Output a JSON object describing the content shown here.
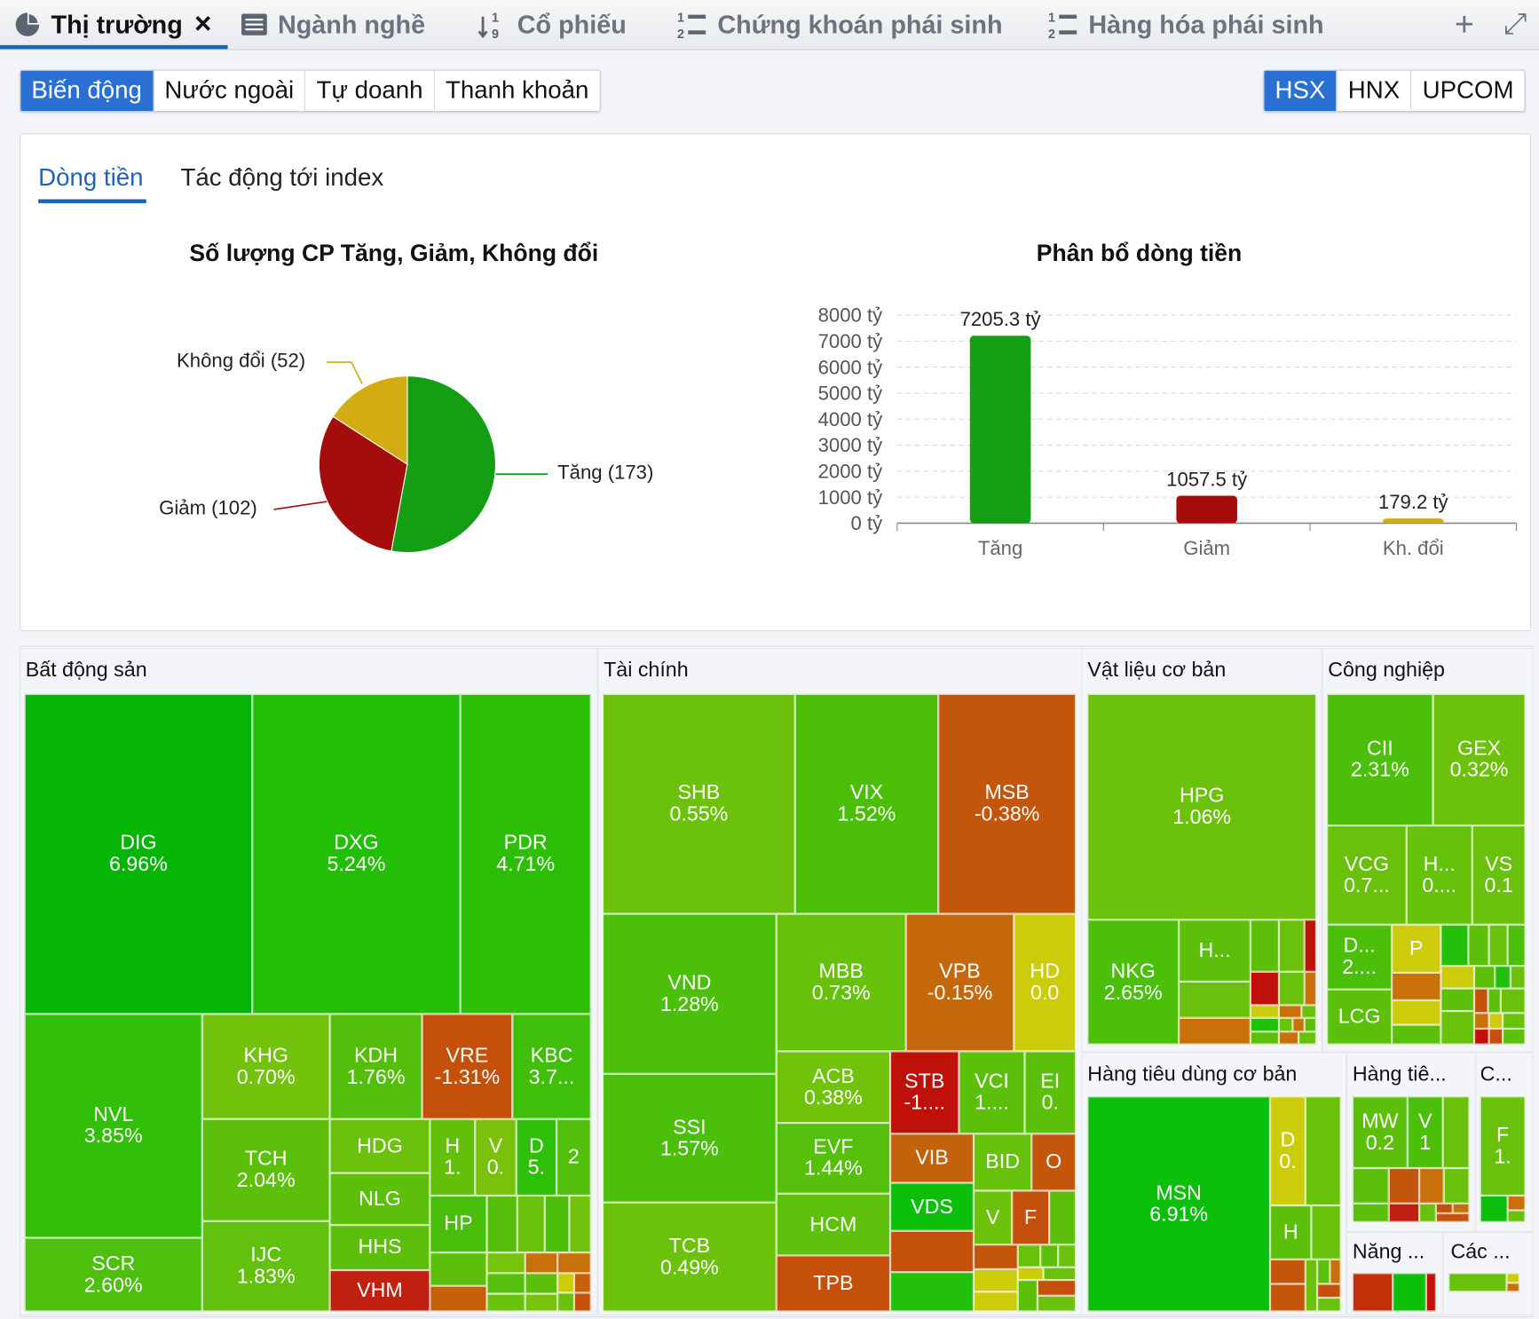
{
  "tabs": [
    {
      "label": "Thị trường",
      "icon": "pie-chart-icon",
      "active": true
    },
    {
      "label": "Ngành nghề",
      "icon": "list-icon"
    },
    {
      "label": "Cổ phiếu",
      "icon": "sort-numeric-icon"
    },
    {
      "label": "Chứng khoán phái sinh",
      "icon": "numbered-list-icon"
    },
    {
      "label": "Hàng hóa phái sinh",
      "icon": "numbered-list-icon"
    }
  ],
  "tab_close": "×",
  "toolbar": {
    "add": "+",
    "expand": "⤢"
  },
  "view_buttons": [
    "Biến động",
    "Nước ngoài",
    "Tự doanh",
    "Thanh khoản"
  ],
  "exchange_buttons": [
    "HSX",
    "HNX",
    "UPCOM"
  ],
  "subtabs": [
    "Dòng tiền",
    "Tác động tới index"
  ],
  "colors": {
    "accent": "#2a6fd3",
    "up": "#139e13",
    "down": "#a50d0d",
    "unchanged": "#d2ac12"
  },
  "chart_data": [
    {
      "type": "pie",
      "title": "Số lượng CP Tăng, Giảm, Không đổi",
      "slices": [
        {
          "label": "Tăng (173)",
          "name": "Tăng",
          "value": 173
        },
        {
          "label": "Giảm (102)",
          "name": "Giảm",
          "value": 102
        },
        {
          "label": "Không đổi (52)",
          "name": "Không đổi",
          "value": 52
        }
      ]
    },
    {
      "type": "bar",
      "title": "Phân bổ dòng tiền",
      "categories": [
        "Tăng",
        "Giảm",
        "Kh. đổi"
      ],
      "values": [
        7205.3,
        1057.5,
        179.2
      ],
      "data_labels": [
        "7205.3 tỷ",
        "1057.5 tỷ",
        "179.2 tỷ"
      ],
      "ylim": [
        0,
        8000
      ],
      "yticks": [
        "0 tỷ",
        "1000 tỷ",
        "2000 tỷ",
        "3000 tỷ",
        "4000 tỷ",
        "5000 tỷ",
        "6000 tỷ",
        "7000 tỷ",
        "8000 tỷ"
      ],
      "grid": true
    }
  ],
  "treemap": {
    "groups": [
      {
        "title": "Bất động sản",
        "tiles": [
          [
            "DIG",
            "6.96%"
          ],
          [
            "DXG",
            "5.24%"
          ],
          [
            "PDR",
            "4.71%"
          ],
          [
            "NVL",
            "3.85%"
          ],
          [
            "SCR",
            "2.60%"
          ],
          [
            "KHG",
            "0.70%"
          ],
          [
            "TCH",
            "2.04%"
          ],
          [
            "IJC",
            "1.83%"
          ],
          [
            "KDH",
            "1.76%"
          ],
          [
            "VRE",
            "-1.31%"
          ],
          [
            "KBC",
            "3.7..."
          ],
          [
            "HDG",
            ""
          ],
          [
            "NLG",
            ""
          ],
          [
            "HHS",
            ""
          ],
          [
            "VHM",
            ""
          ],
          [
            "H",
            "1."
          ],
          [
            "V",
            "0."
          ],
          [
            "D",
            "5."
          ],
          [
            "",
            "2"
          ],
          [
            "HP",
            ""
          ]
        ]
      },
      {
        "title": "Tài chính",
        "tiles": [
          [
            "SHB",
            "0.55%"
          ],
          [
            "VIX",
            "1.52%"
          ],
          [
            "MSB",
            "-0.38%"
          ],
          [
            "VND",
            "1.28%"
          ],
          [
            "SSI",
            "1.57%"
          ],
          [
            "TCB",
            "0.49%"
          ],
          [
            "MBB",
            "0.73%"
          ],
          [
            "VPB",
            "-0.15%"
          ],
          [
            "HD",
            "0.0"
          ],
          [
            "ACB",
            "0.38%"
          ],
          [
            "EVF",
            "1.44%"
          ],
          [
            "HCM",
            ""
          ],
          [
            "TPB",
            ""
          ],
          [
            "STB",
            "-1...."
          ],
          [
            "VCI",
            "1...."
          ],
          [
            "EI",
            "0."
          ],
          [
            "VIB",
            ""
          ],
          [
            "VDS",
            ""
          ],
          [
            "BID",
            ""
          ],
          [
            "O",
            ""
          ],
          [
            "V",
            ""
          ],
          [
            "F",
            ""
          ]
        ]
      },
      {
        "title": "Vật liệu cơ bản",
        "tiles": [
          [
            "HPG",
            "1.06%"
          ],
          [
            "NKG",
            "2.65%"
          ],
          [
            "H...",
            ""
          ]
        ]
      },
      {
        "title": "Công nghiệp",
        "tiles": [
          [
            "CII",
            "2.31%"
          ],
          [
            "GEX",
            "0.32%"
          ],
          [
            "VCG",
            "0.7..."
          ],
          [
            "H...",
            "0...."
          ],
          [
            "VS",
            "0.1"
          ],
          [
            "D...",
            "2...."
          ],
          [
            "LCG",
            ""
          ],
          [
            "P",
            ""
          ]
        ]
      },
      {
        "title": "Hàng tiêu dùng cơ bản",
        "tiles": [
          [
            "MSN",
            "6.91%"
          ],
          [
            "D",
            "0."
          ],
          [
            "H",
            ""
          ]
        ]
      },
      {
        "title": "Hàng tiê...",
        "tiles": [
          [
            "MW",
            "0.2"
          ],
          [
            "V",
            "1"
          ]
        ]
      },
      {
        "title": "C...",
        "tiles": [
          [
            "F",
            "1."
          ]
        ]
      },
      {
        "title": "Năng ...",
        "tiles": []
      },
      {
        "title": "Các ...",
        "tiles": []
      }
    ]
  }
}
